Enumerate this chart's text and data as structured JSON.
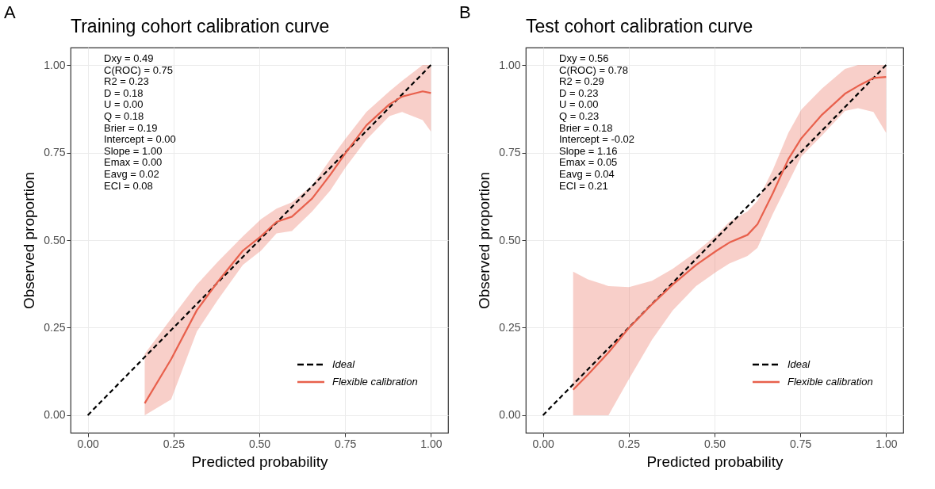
{
  "chart_data": [
    {
      "type": "line",
      "title": "Training cohort calibration curve",
      "xlabel": "Predicted probability",
      "ylabel": "Observed proportion",
      "xlim": [
        -0.05,
        1.05
      ],
      "ylim": [
        -0.05,
        1.05
      ],
      "xticks": [
        {
          "value": 0,
          "label": "0.00"
        },
        {
          "value": 0.25,
          "label": "0.25"
        },
        {
          "value": 0.5,
          "label": "0.50"
        },
        {
          "value": 0.75,
          "label": "0.75"
        },
        {
          "value": 1,
          "label": "1.00"
        }
      ],
      "yticks": [
        {
          "value": 0,
          "label": "0.00"
        },
        {
          "value": 0.25,
          "label": "0.25"
        },
        {
          "value": 0.5,
          "label": "0.50"
        },
        {
          "value": 0.75,
          "label": "0.75"
        },
        {
          "value": 1,
          "label": "1.00"
        }
      ],
      "grid": true,
      "legend": "bottom right",
      "annotations": [
        "A",
        "Dxy = 0.49",
        "C(ROC) = 0.75",
        "R2 = 0.23",
        "D = 0.18",
        "U = 0.00",
        "Q = 0.18",
        "Brier = 0.19",
        "Intercept = 0.00",
        "Slope = 1.00",
        "Emax = 0.00",
        "Eavg = 0.02",
        "ECI = 0.08"
      ],
      "series": [
        {
          "name": "Ideal",
          "color": "#000000",
          "line_style": "dashed",
          "x": [
            0,
            1
          ],
          "values": [
            0,
            1
          ]
        },
        {
          "name": "Flexible calibration",
          "color": "#e8604c",
          "line_style": "solid",
          "x": [
            0.166,
            0.243,
            0.318,
            0.378,
            0.452,
            0.505,
            0.55,
            0.595,
            0.654,
            0.707,
            0.752,
            0.812,
            0.879,
            0.916,
            0.976,
            1.0
          ],
          "values": [
            0.034,
            0.16,
            0.3,
            0.38,
            0.47,
            0.511,
            0.552,
            0.567,
            0.619,
            0.687,
            0.75,
            0.828,
            0.888,
            0.91,
            0.925,
            0.92
          ],
          "lower": [
            0,
            0.045,
            0.239,
            0.328,
            0.429,
            0.47,
            0.519,
            0.526,
            0.582,
            0.642,
            0.709,
            0.787,
            0.854,
            0.866,
            0.843,
            0.81
          ],
          "upper": [
            0.175,
            0.276,
            0.373,
            0.437,
            0.511,
            0.56,
            0.59,
            0.608,
            0.657,
            0.731,
            0.791,
            0.866,
            0.925,
            0.955,
            1.0,
            1.0
          ]
        }
      ]
    },
    {
      "type": "line",
      "title": "Test cohort calibration curve",
      "xlabel": "Predicted probability",
      "ylabel": "Observed proportion",
      "xlim": [
        -0.05,
        1.05
      ],
      "ylim": [
        -0.05,
        1.05
      ],
      "xticks": [
        {
          "value": 0,
          "label": "0.00"
        },
        {
          "value": 0.25,
          "label": "0.25"
        },
        {
          "value": 0.5,
          "label": "0.50"
        },
        {
          "value": 0.75,
          "label": "0.75"
        },
        {
          "value": 1,
          "label": "1.00"
        }
      ],
      "yticks": [
        {
          "value": 0,
          "label": "0.00"
        },
        {
          "value": 0.25,
          "label": "0.25"
        },
        {
          "value": 0.5,
          "label": "0.50"
        },
        {
          "value": 0.75,
          "label": "0.75"
        },
        {
          "value": 1,
          "label": "1.00"
        }
      ],
      "grid": true,
      "legend": "bottom right",
      "annotations": [
        "B",
        "Dxy = 0.56",
        "C(ROC) = 0.78",
        "R2 = 0.29",
        "D = 0.23",
        "U = 0.00",
        "Q = 0.23",
        "Brier = 0.18",
        "Intercept = -0.02",
        "Slope = 1.16",
        "Emax = 0.05",
        "Eavg = 0.04",
        "ECI = 0.21"
      ],
      "series": [
        {
          "name": "Ideal",
          "color": "#000000",
          "line_style": "dashed",
          "x": [
            0,
            1
          ],
          "values": [
            0,
            1
          ]
        },
        {
          "name": "Flexible calibration",
          "color": "#e8604c",
          "line_style": "solid",
          "x": [
            0.088,
            0.131,
            0.191,
            0.251,
            0.318,
            0.378,
            0.446,
            0.506,
            0.543,
            0.596,
            0.625,
            0.67,
            0.715,
            0.753,
            0.813,
            0.88,
            0.918,
            0.963,
            1.0
          ],
          "values": [
            0.073,
            0.116,
            0.179,
            0.25,
            0.317,
            0.373,
            0.429,
            0.47,
            0.493,
            0.515,
            0.545,
            0.634,
            0.731,
            0.791,
            0.858,
            0.918,
            0.94,
            0.963,
            0.966
          ],
          "lower": [
            0,
            0,
            0,
            0.104,
            0.216,
            0.299,
            0.369,
            0.41,
            0.433,
            0.455,
            0.478,
            0.575,
            0.664,
            0.739,
            0.799,
            0.869,
            0.877,
            0.866,
            0.806
          ],
          "upper": [
            0.41,
            0.388,
            0.369,
            0.366,
            0.384,
            0.418,
            0.466,
            0.515,
            0.552,
            0.582,
            0.612,
            0.701,
            0.806,
            0.873,
            0.933,
            0.989,
            1.0,
            1.0,
            1.0
          ]
        }
      ]
    }
  ]
}
